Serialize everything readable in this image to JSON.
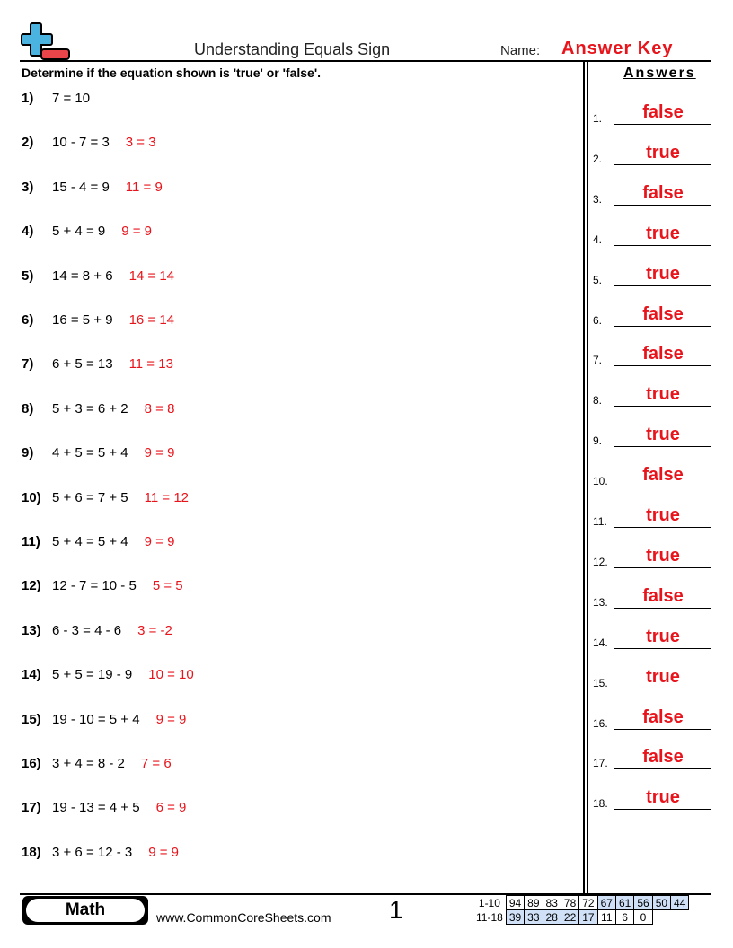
{
  "header": {
    "title": "Understanding Equals Sign",
    "name_label": "Name:",
    "name_value": "Answer Key",
    "logo": "plus-minus-logo"
  },
  "instructions": "Determine if the equation shown is 'true' or 'false'.",
  "answers_heading": "Answers",
  "problems": [
    {
      "num": "1)",
      "eq": "7 = 10",
      "work": ""
    },
    {
      "num": "2)",
      "eq": "10 - 7 = 3",
      "work": "3 = 3"
    },
    {
      "num": "3)",
      "eq": "15 - 4 = 9",
      "work": "11 = 9"
    },
    {
      "num": "4)",
      "eq": "5 + 4 = 9",
      "work": "9 = 9"
    },
    {
      "num": "5)",
      "eq": "14 = 8 + 6",
      "work": "14 = 14"
    },
    {
      "num": "6)",
      "eq": "16 = 5 + 9",
      "work": "16 = 14"
    },
    {
      "num": "7)",
      "eq": "6 + 5 = 13",
      "work": "11 = 13"
    },
    {
      "num": "8)",
      "eq": "5 + 3 = 6 + 2",
      "work": "8 = 8"
    },
    {
      "num": "9)",
      "eq": "4 + 5 = 5 + 4",
      "work": "9 = 9"
    },
    {
      "num": "10)",
      "eq": "5 + 6 = 7 + 5",
      "work": "11 = 12"
    },
    {
      "num": "11)",
      "eq": "5 + 4 = 5 + 4",
      "work": "9 = 9"
    },
    {
      "num": "12)",
      "eq": "12 - 7 = 10 - 5",
      "work": "5 = 5"
    },
    {
      "num": "13)",
      "eq": "6 - 3 = 4 - 6",
      "work": "3 = -2"
    },
    {
      "num": "14)",
      "eq": "5 + 5 = 19 - 9",
      "work": "10 = 10"
    },
    {
      "num": "15)",
      "eq": "19 - 10 = 5 + 4",
      "work": "9 = 9"
    },
    {
      "num": "16)",
      "eq": "3 + 4 = 8 - 2",
      "work": "7 = 6"
    },
    {
      "num": "17)",
      "eq": "19 - 13 = 4 + 5",
      "work": "6 = 9"
    },
    {
      "num": "18)",
      "eq": "3 + 6 = 12 - 3",
      "work": "9 = 9"
    }
  ],
  "answers": [
    {
      "num": "1.",
      "value": "false"
    },
    {
      "num": "2.",
      "value": "true"
    },
    {
      "num": "3.",
      "value": "false"
    },
    {
      "num": "4.",
      "value": "true"
    },
    {
      "num": "5.",
      "value": "true"
    },
    {
      "num": "6.",
      "value": "false"
    },
    {
      "num": "7.",
      "value": "false"
    },
    {
      "num": "8.",
      "value": "true"
    },
    {
      "num": "9.",
      "value": "true"
    },
    {
      "num": "10.",
      "value": "false"
    },
    {
      "num": "11.",
      "value": "true"
    },
    {
      "num": "12.",
      "value": "true"
    },
    {
      "num": "13.",
      "value": "false"
    },
    {
      "num": "14.",
      "value": "true"
    },
    {
      "num": "15.",
      "value": "true"
    },
    {
      "num": "16.",
      "value": "false"
    },
    {
      "num": "17.",
      "value": "false"
    },
    {
      "num": "18.",
      "value": "true"
    }
  ],
  "footer": {
    "subject": "Math",
    "site": "www.CommonCoreSheets.com",
    "page": "1",
    "score_rows": [
      {
        "label": "1-10",
        "cells": [
          "94",
          "89",
          "83",
          "78",
          "72",
          "67",
          "61",
          "56",
          "50",
          "44"
        ]
      },
      {
        "label": "11-18",
        "cells": [
          "39",
          "33",
          "28",
          "22",
          "17",
          "11",
          "6",
          "0"
        ]
      }
    ]
  },
  "colors": {
    "answer": "#e8141b",
    "score_highlight": "#cfe0f7"
  }
}
